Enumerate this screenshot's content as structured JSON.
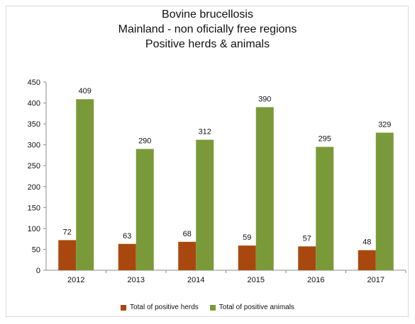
{
  "chart_data": {
    "type": "bar",
    "title_lines": [
      "Bovine brucellosis",
      "Mainland - non oficially free regions",
      "Positive herds & animals"
    ],
    "categories": [
      "2012",
      "2013",
      "2014",
      "2015",
      "2016",
      "2017"
    ],
    "series": [
      {
        "name": "Total of positive herds",
        "values": [
          72,
          63,
          68,
          59,
          57,
          48
        ],
        "color": "#a8480f"
      },
      {
        "name": "Total of positive animals",
        "values": [
          409,
          290,
          312,
          390,
          295,
          329
        ],
        "color": "#7a9a3a"
      }
    ],
    "yticks": [
      "0",
      "50",
      "100",
      "150",
      "200",
      "250",
      "300",
      "350",
      "400",
      "450"
    ],
    "ylim": [
      0,
      450
    ],
    "grid": false,
    "legend_position": "bottom"
  }
}
